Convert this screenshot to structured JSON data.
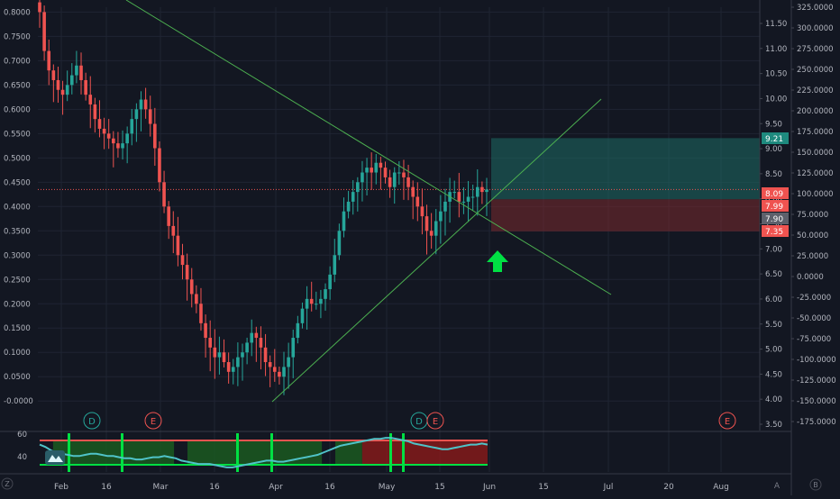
{
  "colors": {
    "background": "#131722",
    "grid": "#1f2433",
    "up": "#26a69a",
    "down": "#ef5350",
    "trendline": "#4caf50",
    "axis_text": "#b2b5be",
    "arrow": "#00e043",
    "osc_line": "#4fc3c8"
  },
  "chart_data": {
    "type": "candlestick",
    "x_ticks": [
      "Feb",
      "16",
      "Mar",
      "16",
      "Apr",
      "16",
      "May",
      "15",
      "Jun",
      "15",
      "Jul",
      "20",
      "Aug"
    ],
    "left_axis": {
      "ticks": [
        "0.8000",
        "0.7500",
        "0.7000",
        "0.6500",
        "0.6000",
        "0.5500",
        "0.5000",
        "0.4500",
        "0.4000",
        "0.3500",
        "0.3000",
        "0.2500",
        "0.2000",
        "0.1500",
        "0.1000",
        "0.0500",
        "-0.0000"
      ],
      "range": [
        -0.02,
        0.81
      ]
    },
    "mid_axis": {
      "ticks": [
        "11.50",
        "11.00",
        "10.50",
        "10.00",
        "9.50",
        "9.00",
        "8.50",
        "8.00",
        "7.50",
        "7.00",
        "6.50",
        "6.00",
        "5.50",
        "5.00",
        "4.50",
        "4.00",
        "3.50"
      ]
    },
    "right_axis": {
      "ticks": [
        "325.0000",
        "300.0000",
        "275.0000",
        "250.0000",
        "225.0000",
        "200.0000",
        "175.0000",
        "150.0000",
        "125.0000",
        "100.0000",
        "75.0000",
        "50.0000",
        "25.0000",
        "0.0000",
        "-25.0000",
        "-50.0000",
        "-75.0000",
        "-100.0000",
        "-125.0000",
        "-150.0000",
        "-175.0000"
      ]
    },
    "price_labels": [
      {
        "text": "9.21",
        "value": 9.21,
        "color": "#1e8a7e"
      },
      {
        "text": "8.09",
        "value": 8.09,
        "color": "#ef5350"
      },
      {
        "text": "7.99",
        "value": 7.99,
        "color": "#ef5350"
      },
      {
        "text": "7.90",
        "value": 7.9,
        "color": "#5d606b"
      },
      {
        "text": "7.35",
        "value": 7.35,
        "color": "#ef5350"
      }
    ],
    "current_level": 0.435,
    "closes": [
      0.8,
      0.72,
      0.68,
      0.66,
      0.64,
      0.63,
      0.65,
      0.67,
      0.69,
      0.66,
      0.63,
      0.61,
      0.58,
      0.56,
      0.55,
      0.54,
      0.53,
      0.52,
      0.53,
      0.55,
      0.58,
      0.6,
      0.62,
      0.6,
      0.57,
      0.52,
      0.45,
      0.4,
      0.36,
      0.34,
      0.3,
      0.28,
      0.25,
      0.22,
      0.2,
      0.16,
      0.13,
      0.11,
      0.09,
      0.1,
      0.08,
      0.06,
      0.07,
      0.09,
      0.1,
      0.12,
      0.14,
      0.13,
      0.11,
      0.08,
      0.07,
      0.06,
      0.05,
      0.07,
      0.09,
      0.13,
      0.16,
      0.19,
      0.21,
      0.2,
      0.2,
      0.21,
      0.23,
      0.26,
      0.3,
      0.35,
      0.39,
      0.41,
      0.43,
      0.45,
      0.47,
      0.48,
      0.47,
      0.49,
      0.48,
      0.46,
      0.44,
      0.47,
      0.47,
      0.46,
      0.44,
      0.42,
      0.4,
      0.38,
      0.35,
      0.34,
      0.37,
      0.39,
      0.41,
      0.43,
      0.43,
      0.41,
      0.41,
      0.42,
      0.42,
      0.44,
      0.43,
      0.435
    ],
    "trendlines": [
      {
        "from": [
          "2021-01-30",
          0.92
        ],
        "to": [
          "2021-06-27",
          0.22
        ]
      },
      {
        "from": [
          "2021-03-31",
          0.02
        ],
        "to": [
          "2021-06-26",
          0.64
        ]
      }
    ],
    "positions": [
      {
        "kind": "profit",
        "color": "#1e6b64",
        "top": 9.21,
        "bottom": 7.99
      },
      {
        "kind": "loss",
        "color": "#7a2a2e",
        "top": 7.99,
        "bottom": 7.35
      }
    ],
    "event_markers": [
      {
        "label": "D",
        "color": "#26a69a"
      },
      {
        "label": "E",
        "color": "#ef5350"
      },
      {
        "label": "D",
        "color": "#26a69a"
      },
      {
        "label": "E",
        "color": "#ef5350"
      },
      {
        "label": "E",
        "color": "#ef5350"
      }
    ],
    "oscillator": {
      "axis_ticks": [
        "60",
        "40"
      ],
      "range": [
        28,
        62
      ],
      "values": [
        52,
        50,
        47,
        45,
        44,
        43,
        42,
        42,
        43,
        44,
        44,
        43,
        42,
        42,
        41,
        40,
        40,
        39,
        39,
        40,
        41,
        41,
        42,
        41,
        40,
        38,
        37,
        36,
        35,
        35,
        35,
        34,
        33,
        32,
        32,
        33,
        34,
        35,
        36,
        37,
        38,
        38,
        37,
        37,
        38,
        39,
        40,
        41,
        42,
        43,
        45,
        47,
        49,
        51,
        52,
        53,
        54,
        55,
        56,
        57,
        57,
        58,
        58,
        57,
        56,
        55,
        53,
        52,
        51,
        50,
        49,
        48,
        48,
        49,
        50,
        51,
        52,
        52,
        53,
        52
      ],
      "bands": [
        {
          "color": "#1b5e20",
          "start": 0.03,
          "end": 0.3
        },
        {
          "color": "#1b5e20",
          "start": 0.33,
          "end": 0.63
        },
        {
          "color": "#1b5e20",
          "start": 0.66,
          "end": 0.72
        },
        {
          "color": "#8b1a1a",
          "start": 0.72,
          "end": 1.0
        }
      ]
    },
    "corner_labels": {
      "z": "Z",
      "a": "A",
      "b": "B"
    }
  }
}
